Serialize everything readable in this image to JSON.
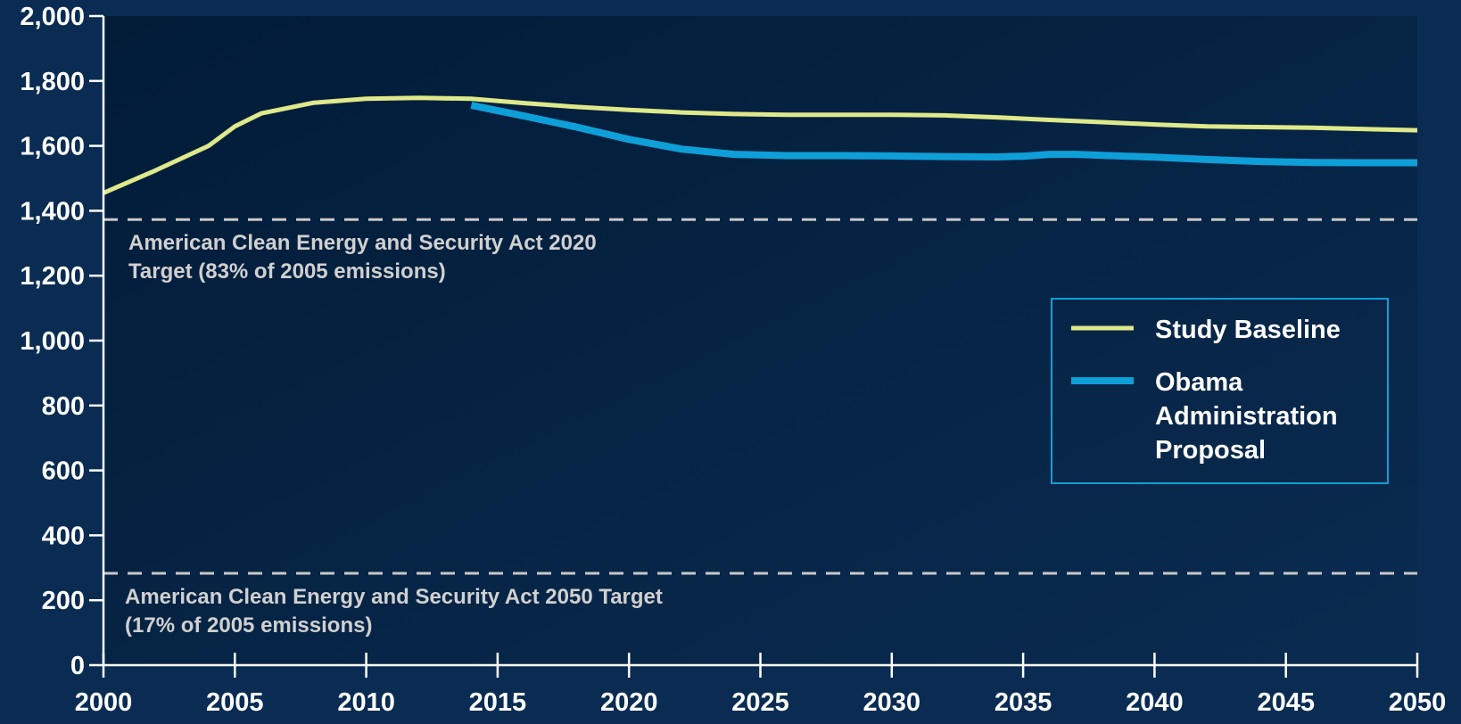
{
  "chart_data": {
    "type": "line",
    "title": "",
    "xlabel": "",
    "ylabel": "",
    "xlim": [
      2000,
      2050
    ],
    "ylim": [
      0,
      2000
    ],
    "x_ticks": [
      "2000",
      "2005",
      "2010",
      "2015",
      "2020",
      "2025",
      "2030",
      "2035",
      "2040",
      "2045",
      "2050"
    ],
    "y_ticks": [
      "0",
      "200",
      "400",
      "600",
      "800",
      "1,000",
      "1,200",
      "1,400",
      "1,600",
      "1,800",
      "2,000"
    ],
    "grid": false,
    "legend_position": "right",
    "series": [
      {
        "name": "Study Baseline",
        "color": "#dfe98a",
        "x": [
          2000,
          2002,
          2004,
          2005,
          2006,
          2008,
          2010,
          2012,
          2014,
          2016,
          2018,
          2020,
          2022,
          2024,
          2026,
          2028,
          2030,
          2032,
          2034,
          2036,
          2038,
          2040,
          2042,
          2044,
          2046,
          2048,
          2050
        ],
        "y": [
          1455,
          1525,
          1600,
          1660,
          1700,
          1733,
          1745,
          1748,
          1745,
          1732,
          1720,
          1711,
          1703,
          1698,
          1696,
          1696,
          1696,
          1694,
          1688,
          1680,
          1673,
          1666,
          1660,
          1658,
          1656,
          1652,
          1648
        ]
      },
      {
        "name": "Obama Administration Proposal",
        "color": "#0f9fd8",
        "x": [
          2014,
          2016,
          2018,
          2020,
          2022,
          2024,
          2026,
          2028,
          2030,
          2032,
          2034,
          2035,
          2036,
          2037,
          2040,
          2042,
          2044,
          2046,
          2048,
          2050
        ],
        "y": [
          1725,
          1692,
          1658,
          1620,
          1590,
          1574,
          1570,
          1570,
          1569,
          1567,
          1566,
          1568,
          1574,
          1574,
          1565,
          1558,
          1552,
          1549,
          1548,
          1548
        ]
      }
    ],
    "reference_lines": [
      {
        "y": 1373,
        "label": "American Clean Energy and Security Act 2020 Target (83% of 2005 emissions)",
        "label_lines": [
          "American Clean Energy and Security Act 2020",
          "Target (83% of 2005 emissions)"
        ],
        "color": "#c8c8c8",
        "style": "dashed"
      },
      {
        "y": 283,
        "label": "American Clean Energy and Security Act 2050 Target (17% of 2005 emissions)",
        "label_lines": [
          "American Clean Energy and Security Act 2050 Target",
          "(17% of 2005 emissions)"
        ],
        "color": "#c8c8c8",
        "style": "dashed"
      }
    ],
    "legend": {
      "entries": [
        {
          "series": "Study Baseline",
          "lines": [
            "Study Baseline"
          ]
        },
        {
          "series": "Obama Administration Proposal",
          "lines": [
            "Obama",
            "Administration",
            "Proposal"
          ]
        }
      ],
      "border_color": "#0f9fd8"
    }
  },
  "colors": {
    "background": "#0a2c52",
    "plot_background": "#03203f",
    "axis": "#ffffff",
    "text": "#ffffff",
    "reference_text": "#d0d0d0"
  }
}
